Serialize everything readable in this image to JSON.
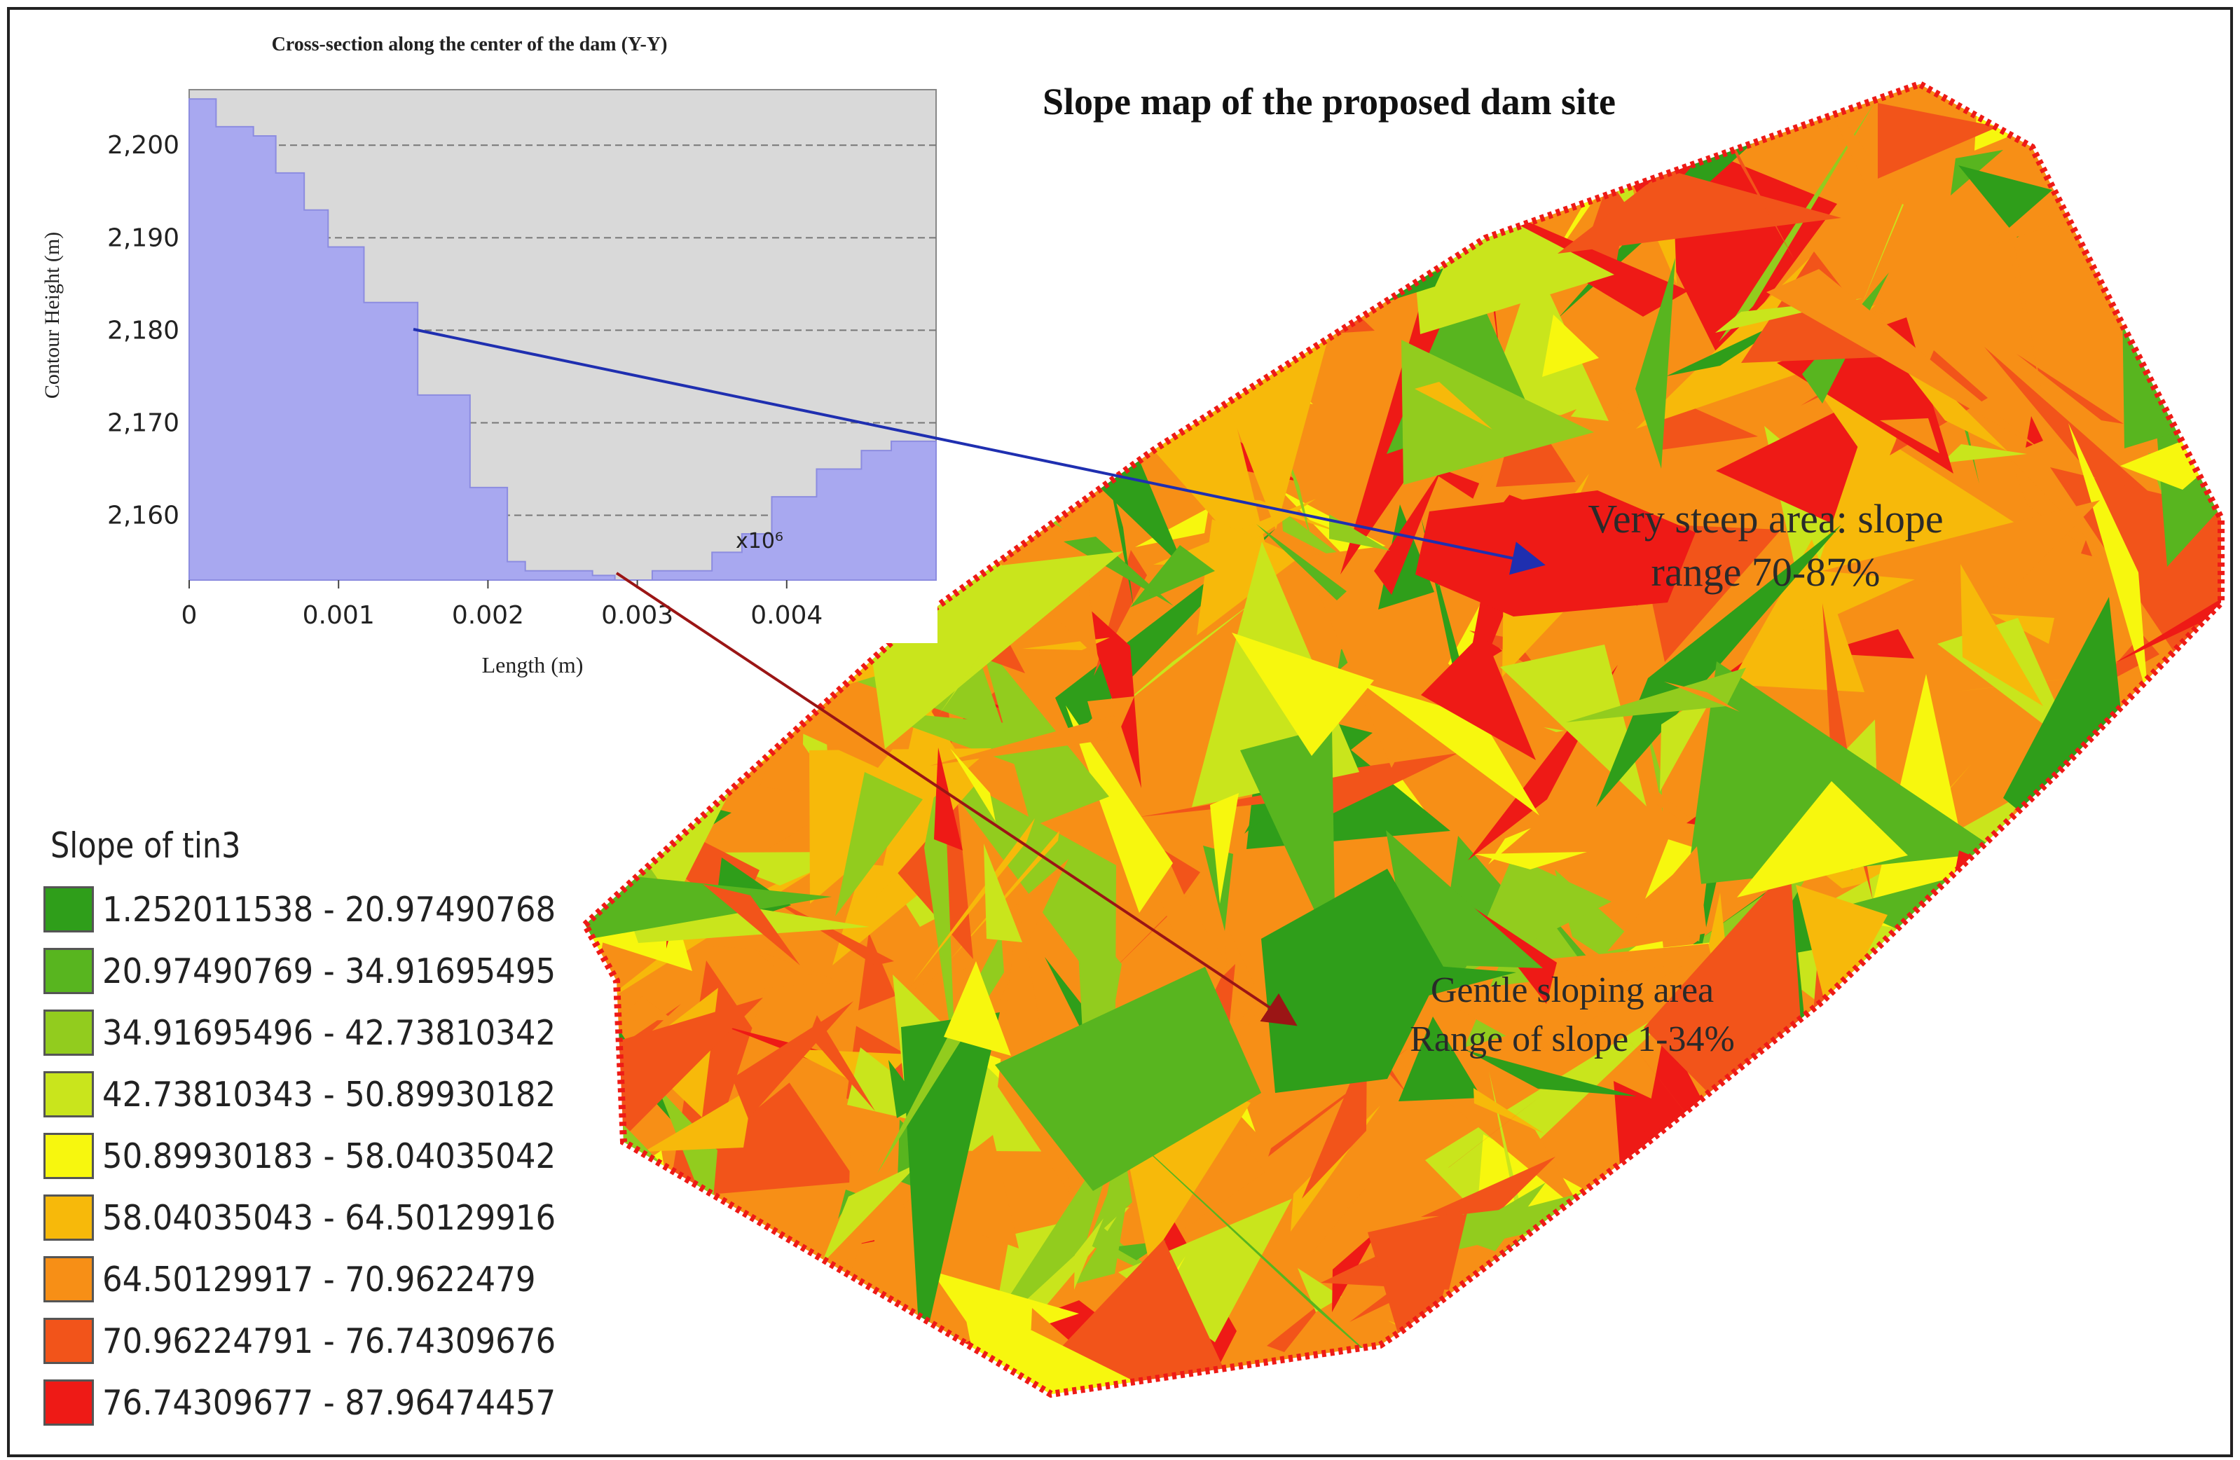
{
  "map": {
    "title": "Slope map of the proposed dam site",
    "annotations": [
      {
        "id": "steep",
        "lines": [
          "Very steep area: slope",
          "range 70-87%"
        ]
      },
      {
        "id": "gentle",
        "lines": [
          "Gentle sloping area",
          "Range of slope 1-34%"
        ]
      }
    ]
  },
  "legend": {
    "title": "Slope of tin3",
    "classes": [
      {
        "label": "1.252011538 - 20.97490768",
        "color": "#2f9e1a"
      },
      {
        "label": "20.97490769 - 34.91695495",
        "color": "#58b51f"
      },
      {
        "label": "34.91695496 - 42.73810342",
        "color": "#92cc1e"
      },
      {
        "label": "42.73810343 - 50.89930182",
        "color": "#c9e51c"
      },
      {
        "label": "50.89930183 - 58.04035042",
        "color": "#f7f70e"
      },
      {
        "label": "58.04035043 - 64.50129916",
        "color": "#f7b90a"
      },
      {
        "label": "64.50129917 - 70.9622479",
        "color": "#f78f16"
      },
      {
        "label": "70.96224791 - 76.74309676",
        "color": "#f2541a"
      },
      {
        "label": "76.74309677 - 87.96474457",
        "color": "#ee1a16"
      }
    ]
  },
  "chart_data": {
    "type": "area",
    "title": "Cross-section along the center of the dam (Y-Y)",
    "xlabel": "Length (m)",
    "ylabel": "Contour Height (m)",
    "x_multiplier_label": "x10⁶",
    "x_ticks": [
      "0",
      "0.001",
      "0.002",
      "0.003",
      "0.004"
    ],
    "y_ticks": [
      "2,160",
      "2,170",
      "2,180",
      "2,190",
      "2,200"
    ],
    "xlim": [
      0,
      0.005
    ],
    "ylim": [
      2153,
      2206
    ],
    "grid": true,
    "series": [
      {
        "fill_color": "#a8a8f0",
        "x": [
          0,
          0.00018,
          0.00043,
          0.00058,
          0.00077,
          0.00093,
          0.00117,
          0.00153,
          0.00188,
          0.00213,
          0.00225,
          0.0027,
          0.00285,
          0.0031,
          0.0035,
          0.0037,
          0.0039,
          0.0042,
          0.0045,
          0.0047,
          0.005
        ],
        "y": [
          2205,
          2202,
          2201,
          2197,
          2193,
          2189,
          2183,
          2173,
          2163,
          2155,
          2154,
          2153.5,
          2153,
          2154,
          2156,
          2158,
          2162,
          2165,
          2167,
          2168,
          2167
        ]
      }
    ]
  }
}
